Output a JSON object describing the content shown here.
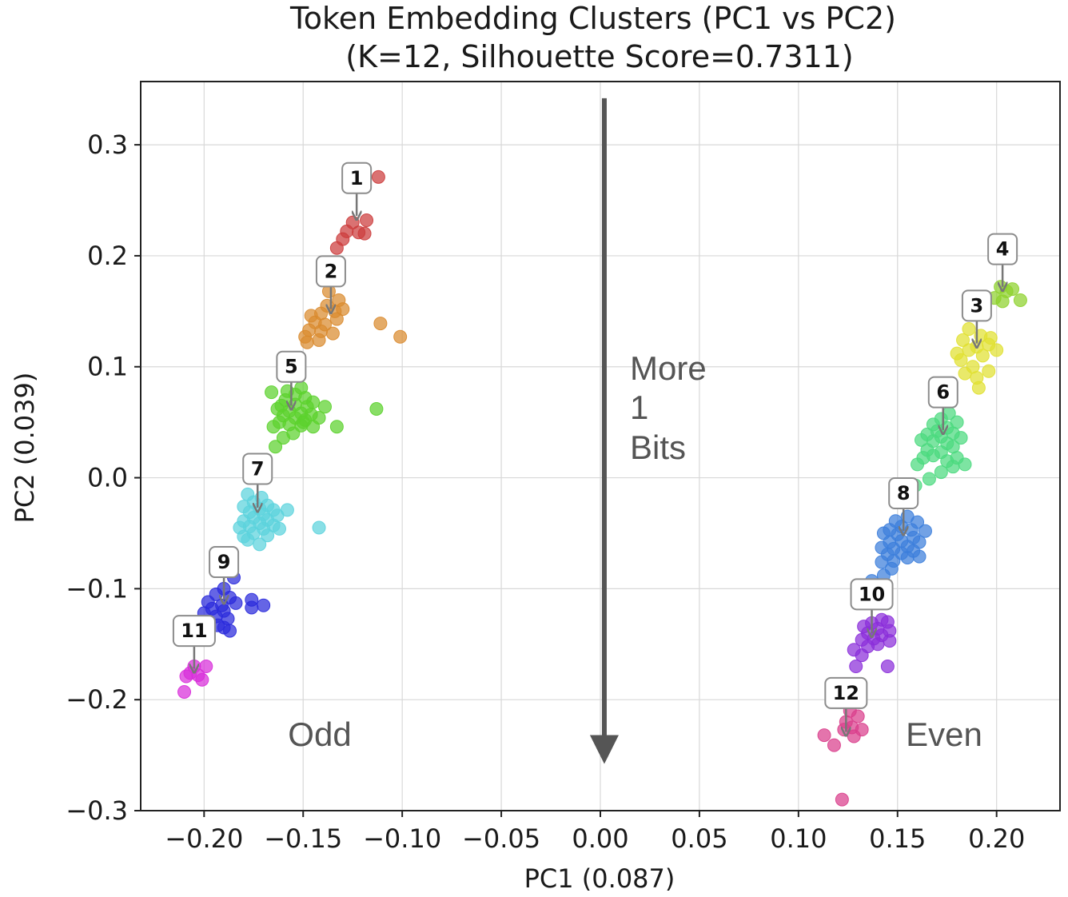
{
  "chart_data": {
    "type": "scatter",
    "title": "Token Embedding Clusters (PC1 vs PC2)",
    "subtitle": "(K=12, Silhouette Score=0.7311)",
    "xlabel": "PC1 (0.087)",
    "ylabel": "PC2 (0.039)",
    "xlim": [
      -0.232,
      0.232
    ],
    "ylim": [
      -0.3,
      0.357
    ],
    "grid": true,
    "x_ticks": [
      -0.2,
      -0.15,
      -0.1,
      -0.05,
      0.0,
      0.05,
      0.1,
      0.15,
      0.2
    ],
    "x_tick_labels": [
      "−0.20",
      "−0.15",
      "−0.10",
      "−0.05",
      "0.00",
      "0.05",
      "0.10",
      "0.15",
      "0.20"
    ],
    "y_ticks": [
      0.3,
      0.2,
      0.1,
      0.0,
      -0.1,
      -0.2,
      -0.3
    ],
    "y_tick_labels": [
      "0.3",
      "0.2",
      "0.1",
      "0.0",
      "−0.1",
      "−0.2",
      "−0.3"
    ],
    "annotations": {
      "odd_label": "Odd",
      "even_label": "Even",
      "arrow_text_line1": "More",
      "arrow_text_line2": "1",
      "arrow_text_line3": "Bits",
      "arrow_from": [
        0.002,
        0.342
      ],
      "arrow_to": [
        0.002,
        -0.255
      ]
    },
    "clusters": [
      {
        "name": "1",
        "color": "#cc3b3b",
        "label_xy": [
          -0.123,
          0.27
        ],
        "target": [
          -0.123,
          0.236
        ],
        "points": [
          [
            -0.112,
            0.271
          ],
          [
            -0.125,
            0.23
          ],
          [
            -0.118,
            0.232
          ],
          [
            -0.128,
            0.222
          ],
          [
            -0.122,
            0.221
          ],
          [
            -0.119,
            0.22
          ],
          [
            -0.13,
            0.215
          ],
          [
            -0.133,
            0.207
          ]
        ]
      },
      {
        "name": "2",
        "color": "#d98a2e",
        "label_xy": [
          -0.136,
          0.186
        ],
        "target": [
          -0.136,
          0.152
        ],
        "points": [
          [
            -0.137,
            0.168
          ],
          [
            -0.132,
            0.16
          ],
          [
            -0.138,
            0.155
          ],
          [
            -0.134,
            0.15
          ],
          [
            -0.141,
            0.148
          ],
          [
            -0.146,
            0.146
          ],
          [
            -0.13,
            0.152
          ],
          [
            -0.144,
            0.14
          ],
          [
            -0.139,
            0.138
          ],
          [
            -0.133,
            0.143
          ],
          [
            -0.147,
            0.133
          ],
          [
            -0.141,
            0.132
          ],
          [
            -0.135,
            0.13
          ],
          [
            -0.149,
            0.127
          ],
          [
            -0.142,
            0.124
          ],
          [
            -0.111,
            0.139
          ],
          [
            -0.101,
            0.127
          ],
          [
            -0.148,
            0.122
          ]
        ]
      },
      {
        "name": "3",
        "color": "#e0e030",
        "label_xy": [
          0.19,
          0.155
        ],
        "target": [
          0.19,
          0.121
        ],
        "points": [
          [
            0.186,
            0.134
          ],
          [
            0.192,
            0.128
          ],
          [
            0.197,
            0.126
          ],
          [
            0.183,
            0.124
          ],
          [
            0.19,
            0.118
          ],
          [
            0.196,
            0.12
          ],
          [
            0.186,
            0.115
          ],
          [
            0.2,
            0.115
          ],
          [
            0.193,
            0.11
          ],
          [
            0.182,
            0.106
          ],
          [
            0.188,
            0.1
          ],
          [
            0.184,
            0.094
          ],
          [
            0.19,
            0.09
          ],
          [
            0.196,
            0.096
          ],
          [
            0.18,
            0.112
          ],
          [
            0.191,
            0.081
          ]
        ]
      },
      {
        "name": "4",
        "color": "#8ed12c",
        "label_xy": [
          0.203,
          0.206
        ],
        "target": [
          0.203,
          0.172
        ],
        "points": [
          [
            0.202,
            0.172
          ],
          [
            0.208,
            0.17
          ],
          [
            0.205,
            0.168
          ],
          [
            0.199,
            0.162
          ],
          [
            0.212,
            0.16
          ],
          [
            0.203,
            0.159
          ]
        ]
      },
      {
        "name": "5",
        "color": "#5bd12c",
        "label_xy": [
          -0.156,
          0.1
        ],
        "target": [
          -0.156,
          0.065
        ],
        "points": [
          [
            -0.151,
            0.081
          ],
          [
            -0.158,
            0.078
          ],
          [
            -0.166,
            0.077
          ],
          [
            -0.154,
            0.075
          ],
          [
            -0.149,
            0.072
          ],
          [
            -0.159,
            0.07
          ],
          [
            -0.145,
            0.068
          ],
          [
            -0.154,
            0.066
          ],
          [
            -0.161,
            0.065
          ],
          [
            -0.148,
            0.064
          ],
          [
            -0.163,
            0.062
          ],
          [
            -0.157,
            0.06
          ],
          [
            -0.151,
            0.058
          ],
          [
            -0.146,
            0.057
          ],
          [
            -0.16,
            0.056
          ],
          [
            -0.154,
            0.054
          ],
          [
            -0.149,
            0.052
          ],
          [
            -0.162,
            0.05
          ],
          [
            -0.157,
            0.048
          ],
          [
            -0.151,
            0.047
          ],
          [
            -0.145,
            0.046
          ],
          [
            -0.165,
            0.046
          ],
          [
            -0.155,
            0.04
          ],
          [
            -0.16,
            0.036
          ],
          [
            -0.164,
            0.028
          ],
          [
            -0.139,
            0.064
          ],
          [
            -0.142,
            0.054
          ],
          [
            -0.133,
            0.046
          ],
          [
            -0.113,
            0.062
          ],
          [
            -0.15,
            0.05
          ]
        ]
      },
      {
        "name": "6",
        "color": "#4bd97e",
        "label_xy": [
          0.173,
          0.077
        ],
        "target": [
          0.173,
          0.043
        ],
        "points": [
          [
            0.176,
            0.058
          ],
          [
            0.172,
            0.053
          ],
          [
            0.18,
            0.05
          ],
          [
            0.168,
            0.048
          ],
          [
            0.175,
            0.045
          ],
          [
            0.17,
            0.042
          ],
          [
            0.178,
            0.04
          ],
          [
            0.165,
            0.039
          ],
          [
            0.172,
            0.037
          ],
          [
            0.182,
            0.036
          ],
          [
            0.168,
            0.033
          ],
          [
            0.175,
            0.031
          ],
          [
            0.162,
            0.034
          ],
          [
            0.178,
            0.028
          ],
          [
            0.165,
            0.025
          ],
          [
            0.172,
            0.023
          ],
          [
            0.168,
            0.02
          ],
          [
            0.163,
            0.018
          ],
          [
            0.18,
            0.018
          ],
          [
            0.175,
            0.015
          ],
          [
            0.184,
            0.012
          ],
          [
            0.178,
            0.01
          ],
          [
            0.16,
            0.012
          ],
          [
            0.172,
            0.005
          ],
          [
            0.166,
            -0.001
          ],
          [
            0.159,
            -0.007
          ]
        ]
      },
      {
        "name": "7",
        "color": "#5cd3dd",
        "label_xy": [
          -0.173,
          0.008
        ],
        "target": [
          -0.173,
          -0.027
        ],
        "points": [
          [
            -0.178,
            -0.015
          ],
          [
            -0.171,
            -0.018
          ],
          [
            -0.175,
            -0.022
          ],
          [
            -0.168,
            -0.025
          ],
          [
            -0.18,
            -0.026
          ],
          [
            -0.172,
            -0.028
          ],
          [
            -0.165,
            -0.029
          ],
          [
            -0.177,
            -0.031
          ],
          [
            -0.17,
            -0.033
          ],
          [
            -0.163,
            -0.034
          ],
          [
            -0.175,
            -0.036
          ],
          [
            -0.168,
            -0.038
          ],
          [
            -0.18,
            -0.039
          ],
          [
            -0.172,
            -0.041
          ],
          [
            -0.165,
            -0.043
          ],
          [
            -0.177,
            -0.044
          ],
          [
            -0.17,
            -0.046
          ],
          [
            -0.162,
            -0.046
          ],
          [
            -0.182,
            -0.045
          ],
          [
            -0.175,
            -0.05
          ],
          [
            -0.168,
            -0.052
          ],
          [
            -0.178,
            -0.056
          ],
          [
            -0.172,
            -0.06
          ],
          [
            -0.158,
            -0.029
          ],
          [
            -0.142,
            -0.045
          ],
          [
            -0.18,
            -0.053
          ]
        ]
      },
      {
        "name": "8",
        "color": "#3c7edb",
        "label_xy": [
          0.153,
          -0.014
        ],
        "target": [
          0.153,
          -0.048
        ],
        "points": [
          [
            0.155,
            -0.035
          ],
          [
            0.149,
            -0.039
          ],
          [
            0.16,
            -0.04
          ],
          [
            0.152,
            -0.044
          ],
          [
            0.146,
            -0.047
          ],
          [
            0.157,
            -0.047
          ],
          [
            0.164,
            -0.048
          ],
          [
            0.15,
            -0.051
          ],
          [
            0.143,
            -0.05
          ],
          [
            0.158,
            -0.054
          ],
          [
            0.152,
            -0.057
          ],
          [
            0.146,
            -0.058
          ],
          [
            0.161,
            -0.058
          ],
          [
            0.155,
            -0.062
          ],
          [
            0.148,
            -0.064
          ],
          [
            0.142,
            -0.063
          ],
          [
            0.158,
            -0.066
          ],
          [
            0.152,
            -0.068
          ],
          [
            0.145,
            -0.069
          ],
          [
            0.161,
            -0.071
          ],
          [
            0.155,
            -0.072
          ],
          [
            0.148,
            -0.075
          ],
          [
            0.142,
            -0.076
          ],
          [
            0.147,
            -0.082
          ],
          [
            0.143,
            -0.088
          ],
          [
            0.137,
            -0.093
          ],
          [
            0.141,
            -0.098
          ],
          [
            0.132,
            -0.102
          ]
        ]
      },
      {
        "name": "9",
        "color": "#2a2adb",
        "label_xy": [
          -0.19,
          -0.076
        ],
        "target": [
          -0.19,
          -0.11
        ],
        "points": [
          [
            -0.185,
            -0.09
          ],
          [
            -0.19,
            -0.1
          ],
          [
            -0.194,
            -0.105
          ],
          [
            -0.187,
            -0.108
          ],
          [
            -0.198,
            -0.112
          ],
          [
            -0.191,
            -0.115
          ],
          [
            -0.184,
            -0.113
          ],
          [
            -0.196,
            -0.118
          ],
          [
            -0.19,
            -0.12
          ],
          [
            -0.2,
            -0.122
          ],
          [
            -0.194,
            -0.125
          ],
          [
            -0.188,
            -0.127
          ],
          [
            -0.198,
            -0.13
          ],
          [
            -0.193,
            -0.133
          ],
          [
            -0.187,
            -0.138
          ],
          [
            -0.176,
            -0.11
          ],
          [
            -0.17,
            -0.115
          ],
          [
            -0.176,
            -0.117
          ],
          [
            -0.19,
            -0.135
          ]
        ]
      },
      {
        "name": "10",
        "color": "#8a2ed9",
        "label_xy": [
          0.137,
          -0.105
        ],
        "target": [
          0.137,
          -0.14
        ],
        "points": [
          [
            0.142,
            -0.128
          ],
          [
            0.137,
            -0.131
          ],
          [
            0.145,
            -0.13
          ],
          [
            0.133,
            -0.134
          ],
          [
            0.14,
            -0.136
          ],
          [
            0.146,
            -0.138
          ],
          [
            0.135,
            -0.14
          ],
          [
            0.142,
            -0.142
          ],
          [
            0.138,
            -0.145
          ],
          [
            0.132,
            -0.146
          ],
          [
            0.146,
            -0.147
          ],
          [
            0.14,
            -0.15
          ],
          [
            0.135,
            -0.152
          ],
          [
            0.128,
            -0.155
          ],
          [
            0.132,
            -0.16
          ],
          [
            0.145,
            -0.17
          ],
          [
            0.129,
            -0.17
          ]
        ]
      },
      {
        "name": "11",
        "color": "#d82ed9",
        "label_xy": [
          -0.205,
          -0.138
        ],
        "target": [
          -0.205,
          -0.172
        ],
        "points": [
          [
            -0.205,
            -0.17
          ],
          [
            -0.199,
            -0.17
          ],
          [
            -0.207,
            -0.176
          ],
          [
            -0.203,
            -0.178
          ],
          [
            -0.209,
            -0.179
          ],
          [
            -0.201,
            -0.182
          ],
          [
            -0.21,
            -0.193
          ]
        ]
      },
      {
        "name": "12",
        "color": "#d93f8c",
        "label_xy": [
          0.124,
          -0.194
        ],
        "target": [
          0.124,
          -0.229
        ],
        "points": [
          [
            0.126,
            -0.21
          ],
          [
            0.13,
            -0.215
          ],
          [
            0.124,
            -0.22
          ],
          [
            0.127,
            -0.225
          ],
          [
            0.132,
            -0.227
          ],
          [
            0.123,
            -0.227
          ],
          [
            0.128,
            -0.233
          ],
          [
            0.113,
            -0.232
          ],
          [
            0.118,
            -0.241
          ],
          [
            0.122,
            -0.29
          ]
        ]
      }
    ]
  }
}
